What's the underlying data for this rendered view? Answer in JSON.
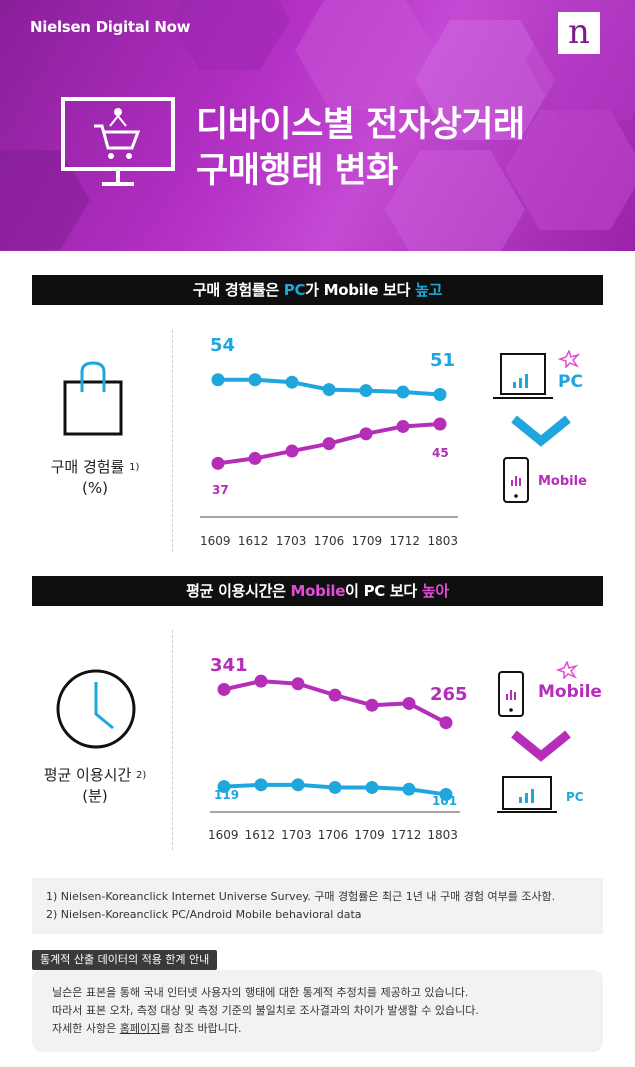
{
  "header": {
    "brand": "Nielsen Digital Now",
    "logo": "n",
    "title_line1": "디바이스별 전자상거래",
    "title_line2": "구매행태 변화",
    "icon": "monitor-cart-icon"
  },
  "section1": {
    "heading_pre": "구매 경험률은 ",
    "heading_pc": "PC",
    "heading_mid": "가 Mobile 보다 ",
    "heading_hi": "높고",
    "label_line1": "구매 경험률",
    "label_sup": "1)",
    "label_line2": "(%)",
    "icon": "shopping-bag-icon",
    "pc_first": "54",
    "pc_last": "51",
    "mobile_first": "37",
    "mobile_last": "45",
    "legend_top": "PC",
    "legend_bottom": "Mobile"
  },
  "section2": {
    "heading_pre": "평균 이용시간은 ",
    "heading_mobile": "Mobile",
    "heading_mid": "이 PC 보다 ",
    "heading_hi": "높아",
    "label_line1": "평균 이용시간",
    "label_sup": "2)",
    "label_line2": "(분)",
    "icon": "clock-icon",
    "mobile_first": "341",
    "mobile_last": "265",
    "pc_first": "119",
    "pc_last": "101",
    "legend_top": "Mobile",
    "legend_bottom": "PC"
  },
  "chart_data": [
    {
      "type": "line",
      "categories": [
        "1609",
        "1612",
        "1703",
        "1706",
        "1709",
        "1712",
        "1803"
      ],
      "series": [
        {
          "name": "PC",
          "values": [
            54,
            54,
            53.5,
            52,
            51.8,
            51.5,
            51
          ]
        },
        {
          "name": "Mobile",
          "values": [
            37,
            38,
            39.5,
            41,
            43,
            44.5,
            45
          ]
        }
      ],
      "ylim": [
        33,
        57
      ]
    },
    {
      "type": "line",
      "categories": [
        "1609",
        "1612",
        "1703",
        "1706",
        "1709",
        "1712",
        "1803"
      ],
      "series": [
        {
          "name": "Mobile",
          "values": [
            341,
            360,
            354,
            328,
            305,
            309,
            265
          ]
        },
        {
          "name": "PC",
          "values": [
            119,
            123,
            123,
            117,
            117,
            113,
            101
          ]
        }
      ],
      "ylim": [
        70,
        390
      ]
    }
  ],
  "notes": {
    "line1": "1) Nielsen-Koreanclick Internet Universe Survey. 구매 경험률은 최근 1년 내 구매 경험 여부를 조사함.",
    "line2": "2) Nielsen-Koreanclick PC/Android Mobile behavioral data"
  },
  "guide": {
    "tag": "통계적 산출 데이터의 적용 한계 안내",
    "line1": "닐슨은 표본을 통해 국내 인터넷 사용자의 행태에 대한 통계적 추정치를 제공하고 있습니다.",
    "line2": "따라서 표본 오차, 측정 대상 및 측정 기준의 불일치로 조사결과의 차이가 발생할 수 있습니다.",
    "line3_pre": "자세한 사항은 ",
    "line3_link": "홈페이지",
    "line3_post": "를 참조 바랍니다."
  },
  "colors": {
    "pc": "#1fa6dd",
    "mobile": "#b52eb8",
    "header": "#a02ab3"
  }
}
